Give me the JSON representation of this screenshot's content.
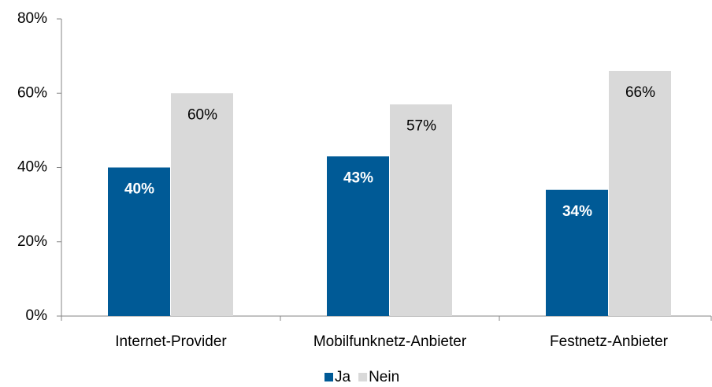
{
  "chart_data": {
    "type": "bar",
    "categories": [
      "Internet-Provider",
      "Mobilfunknetz-Anbieter",
      "Festnetz-Anbieter"
    ],
    "series": [
      {
        "name": "Ja",
        "color": "#005a96",
        "values": [
          40,
          43,
          34
        ],
        "value_labels": [
          "40%",
          "43%",
          "34%"
        ]
      },
      {
        "name": "Nein",
        "color": "#d9d9d9",
        "values": [
          60,
          57,
          66
        ],
        "value_labels": [
          "60%",
          "57%",
          "66%"
        ]
      }
    ],
    "ylim": [
      0,
      80
    ],
    "yticks": [
      {
        "value": 0,
        "label": "0%"
      },
      {
        "value": 20,
        "label": "20%"
      },
      {
        "value": 40,
        "label": "40%"
      },
      {
        "value": 60,
        "label": "60%"
      },
      {
        "value": 80,
        "label": "80%"
      }
    ],
    "legend": "bottom"
  }
}
